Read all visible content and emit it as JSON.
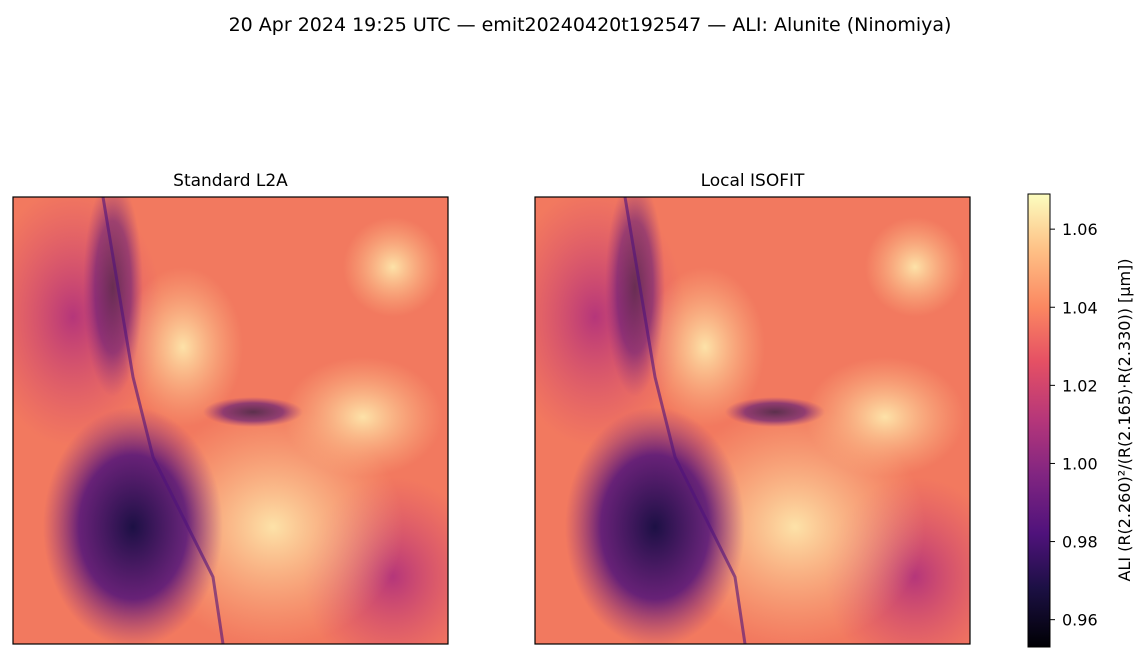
{
  "chart_data": {
    "type": "heatmap",
    "title": "20 Apr 2024 19:25 UTC — emit20240420t192547 — ALI: Alunite (Ninomiya)",
    "panels": [
      {
        "title": "Standard L2A"
      },
      {
        "title": "Local ISOFIT"
      }
    ],
    "colorbar_label": "ALI  (R(2.260)²/(R(2.165)·R(2.330))  [µm])",
    "clim": [
      0.953,
      1.069
    ],
    "cticks": [
      0.96,
      0.98,
      {
        "value": 1.0,
        "label": "1.00"
      },
      1.02,
      1.04,
      1.06
    ]
  }
}
